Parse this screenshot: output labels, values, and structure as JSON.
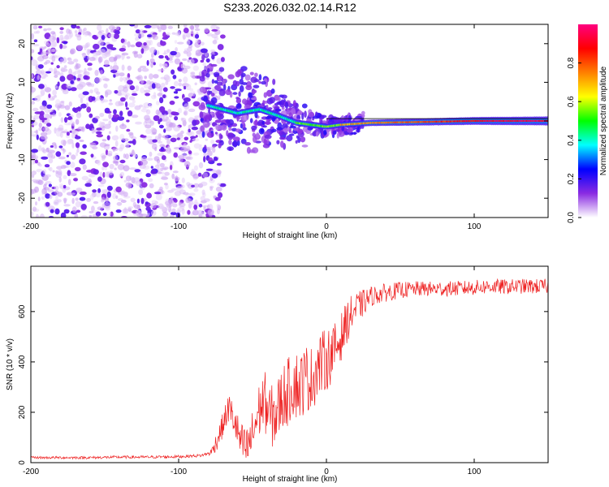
{
  "title": "S233.2026.032.02.14.R12",
  "chart_data": [
    {
      "type": "heatmap",
      "description_label": "spectrogram",
      "xlabel": "Height of straight line (km)",
      "ylabel": "Frequency (Hz)",
      "xlim": [
        -200,
        150
      ],
      "ylim": [
        -25,
        25
      ],
      "xticks": [
        -200,
        -100,
        0,
        100
      ],
      "yticks": [
        -20,
        -10,
        0,
        10,
        20
      ],
      "colorbar": {
        "label": "Normalized spectral amplitude",
        "range": [
          0,
          1
        ],
        "ticks": [
          0.0,
          0.2,
          0.4,
          0.6,
          0.8
        ],
        "tick_labels": [
          "0.0",
          "0.2",
          "0.4",
          "0.6",
          "0.8"
        ],
        "colors": [
          "#ffffff",
          "#8a2be2",
          "#0000ff",
          "#00ffff",
          "#00ff00",
          "#ffff00",
          "#ff8000",
          "#ff0000",
          "#ff0080"
        ]
      },
      "features": {
        "noise_region_x": [
          -200,
          -80
        ],
        "noise_typical_amplitude": 0.15,
        "signal_track": [
          {
            "x": -80,
            "freq": 4
          },
          {
            "x": -60,
            "freq": 2
          },
          {
            "x": -45,
            "freq": 3
          },
          {
            "x": -30,
            "freq": 1
          },
          {
            "x": -20,
            "freq": -0.5
          },
          {
            "x": -10,
            "freq": -1
          },
          {
            "x": 0,
            "freq": -1.5
          },
          {
            "x": 10,
            "freq": -1
          },
          {
            "x": 30,
            "freq": -0.5
          },
          {
            "x": 60,
            "freq": -0.3
          },
          {
            "x": 100,
            "freq": 0
          },
          {
            "x": 150,
            "freq": 0
          }
        ]
      }
    },
    {
      "type": "line",
      "xlabel": "Height of straight line (km)",
      "ylabel": "SNR (10 * v/v)",
      "xlim": [
        -200,
        150
      ],
      "ylim": [
        0,
        780
      ],
      "xticks": [
        -200,
        -100,
        0,
        100
      ],
      "yticks": [
        0,
        200,
        400,
        600
      ],
      "color": "#ee2222",
      "series": [
        {
          "name": "SNR",
          "x": [
            -200,
            -180,
            -160,
            -140,
            -120,
            -100,
            -85,
            -78,
            -74,
            -70,
            -66,
            -62,
            -58,
            -54,
            -50,
            -46,
            -42,
            -38,
            -34,
            -30,
            -26,
            -22,
            -18,
            -14,
            -10,
            -6,
            -2,
            2,
            6,
            10,
            14,
            18,
            22,
            26,
            30,
            40,
            50,
            60,
            70,
            80,
            90,
            100,
            110,
            120,
            130,
            140,
            150
          ],
          "values": [
            20,
            20,
            20,
            22,
            22,
            24,
            28,
            40,
            90,
            150,
            220,
            160,
            80,
            50,
            110,
            200,
            250,
            180,
            190,
            260,
            280,
            320,
            300,
            340,
            330,
            380,
            400,
            420,
            450,
            500,
            560,
            600,
            620,
            640,
            660,
            675,
            685,
            690,
            690,
            690,
            692,
            695,
            700,
            698,
            700,
            700,
            700
          ]
        }
      ],
      "noise_amplitude": [
        {
          "x": -200,
          "amp": 10
        },
        {
          "x": -80,
          "amp": 12
        },
        {
          "x": -74,
          "amp": 80
        },
        {
          "x": -60,
          "amp": 150
        },
        {
          "x": -40,
          "amp": 250
        },
        {
          "x": -20,
          "amp": 280
        },
        {
          "x": 0,
          "amp": 250
        },
        {
          "x": 15,
          "amp": 160
        },
        {
          "x": 30,
          "amp": 80
        },
        {
          "x": 60,
          "amp": 60
        },
        {
          "x": 150,
          "amp": 60
        }
      ]
    }
  ]
}
